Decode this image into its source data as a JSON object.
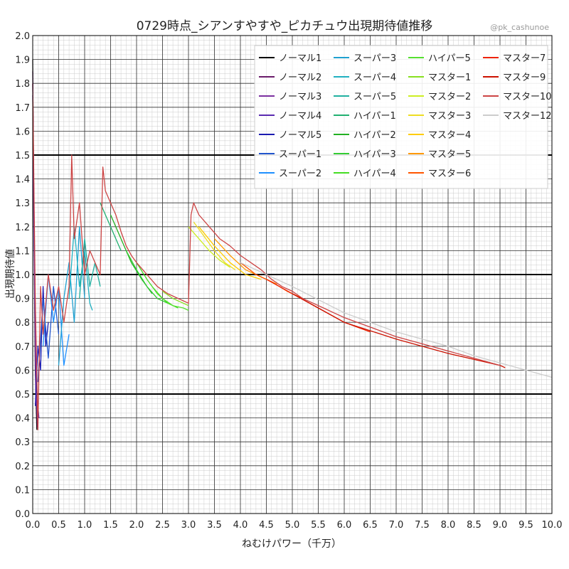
{
  "watermark": "@pk_cashunoe",
  "colors": {
    "grid_major": "#333333",
    "grid_minor": "#cccccc",
    "reference_lines": "#000000"
  },
  "chart_data": {
    "type": "line",
    "title": "0729時点_シアンすやすや_ピカチュウ出現期待値推移",
    "xlabel": "ねむけパワー（千万）",
    "ylabel": "出現期待値",
    "xlim": [
      0,
      10
    ],
    "ylim": [
      0,
      2
    ],
    "x_ticks": [
      "0.0",
      "0.5",
      "1.0",
      "1.5",
      "2.0",
      "2.5",
      "3.0",
      "3.5",
      "4.0",
      "4.5",
      "5.0",
      "5.5",
      "6.0",
      "6.5",
      "7.0",
      "7.5",
      "8.0",
      "8.5",
      "9.0",
      "9.5",
      "10.0"
    ],
    "y_ticks": [
      "0.0",
      "0.1",
      "0.2",
      "0.3",
      "0.4",
      "0.5",
      "0.6",
      "0.7",
      "0.8",
      "0.9",
      "1.0",
      "1.1",
      "1.2",
      "1.3",
      "1.4",
      "1.5",
      "1.6",
      "1.7",
      "1.8",
      "1.9",
      "2.0"
    ],
    "grid": true,
    "reference_lines_y": [
      0.5,
      1.0,
      1.5
    ],
    "legend_position": "top-right",
    "legend_columns": 4,
    "series": [
      {
        "name": "ノーマル1",
        "color": "#000000",
        "x": [
          0.0,
          0.02,
          0.05,
          0.08
        ],
        "y": [
          1.9,
          1.2,
          0.6,
          0.35
        ]
      },
      {
        "name": "ノーマル2",
        "color": "#6a1b6a",
        "x": [
          0.0,
          0.03,
          0.06,
          0.09
        ],
        "y": [
          1.85,
          1.1,
          0.55,
          0.36
        ]
      },
      {
        "name": "ノーマル3",
        "color": "#7b2fa0",
        "x": [
          0.0,
          0.03,
          0.06,
          0.1
        ],
        "y": [
          1.8,
          1.05,
          0.5,
          0.38
        ]
      },
      {
        "name": "ノーマル4",
        "color": "#5a2ab0",
        "x": [
          0.0,
          0.04,
          0.08,
          0.12
        ],
        "y": [
          1.75,
          1.0,
          0.5,
          0.4
        ]
      },
      {
        "name": "ノーマル5",
        "color": "#1a1ab0",
        "x": [
          0.05,
          0.1,
          0.15,
          0.2,
          0.25,
          0.3
        ],
        "y": [
          0.45,
          0.7,
          0.6,
          0.95,
          0.7,
          0.8
        ]
      },
      {
        "name": "スーパー1",
        "color": "#2255cc",
        "x": [
          0.1,
          0.2,
          0.3,
          0.4,
          0.5
        ],
        "y": [
          0.55,
          0.9,
          0.65,
          0.95,
          0.75
        ]
      },
      {
        "name": "スーパー2",
        "color": "#1e90ff",
        "x": [
          0.2,
          0.3,
          0.4,
          0.5,
          0.6,
          0.7
        ],
        "y": [
          0.7,
          1.0,
          0.8,
          0.95,
          0.62,
          0.75
        ]
      },
      {
        "name": "スーパー3",
        "color": "#1fa0d0",
        "x": [
          0.5,
          0.6,
          0.7,
          0.8,
          0.9,
          1.0
        ],
        "y": [
          0.62,
          0.9,
          1.05,
          0.8,
          1.2,
          0.9
        ]
      },
      {
        "name": "スーパー4",
        "color": "#20b0c0",
        "x": [
          0.7,
          0.8,
          0.9,
          1.0,
          1.1,
          1.15
        ],
        "y": [
          0.9,
          1.2,
          0.95,
          1.1,
          0.88,
          0.85
        ]
      },
      {
        "name": "スーパー5",
        "color": "#20b0a0",
        "x": [
          0.9,
          1.0,
          1.1,
          1.2,
          1.3
        ],
        "y": [
          0.9,
          1.15,
          0.95,
          1.05,
          0.95
        ]
      },
      {
        "name": "ハイパー1",
        "color": "#20b070",
        "x": [
          1.3,
          1.4,
          1.5,
          1.6,
          1.7
        ],
        "y": [
          1.3,
          1.25,
          1.2,
          1.15,
          1.1
        ]
      },
      {
        "name": "ハイパー2",
        "color": "#22b022",
        "x": [
          1.5,
          1.7,
          1.9,
          2.1,
          2.3
        ],
        "y": [
          1.25,
          1.15,
          1.05,
          0.98,
          0.92
        ]
      },
      {
        "name": "ハイパー3",
        "color": "#33cc33",
        "x": [
          1.8,
          2.0,
          2.2,
          2.4,
          2.6
        ],
        "y": [
          1.1,
          1.02,
          0.95,
          0.9,
          0.88
        ]
      },
      {
        "name": "ハイパー4",
        "color": "#44dd22",
        "x": [
          2.0,
          2.2,
          2.4,
          2.6,
          2.8
        ],
        "y": [
          1.05,
          0.98,
          0.92,
          0.88,
          0.86
        ]
      },
      {
        "name": "ハイパー5",
        "color": "#55e030",
        "x": [
          2.3,
          2.5,
          2.7,
          2.9,
          3.0
        ],
        "y": [
          0.95,
          0.9,
          0.87,
          0.86,
          0.85
        ]
      },
      {
        "name": "マスター1",
        "color": "#88e020",
        "x": [
          2.5,
          2.7,
          2.9,
          3.0
        ],
        "y": [
          0.93,
          0.9,
          0.88,
          0.87
        ]
      },
      {
        "name": "マスター2",
        "color": "#ccee22",
        "x": [
          3.0,
          3.2,
          3.4,
          3.6,
          3.8
        ],
        "y": [
          1.2,
          1.15,
          1.1,
          1.06,
          1.03
        ]
      },
      {
        "name": "マスター3",
        "color": "#eedd22",
        "x": [
          3.1,
          3.3,
          3.5,
          3.7,
          3.9
        ],
        "y": [
          1.22,
          1.16,
          1.1,
          1.05,
          1.02
        ]
      },
      {
        "name": "マスター4",
        "color": "#ffcc00",
        "x": [
          3.2,
          3.5,
          3.8,
          4.1,
          4.4
        ],
        "y": [
          1.2,
          1.12,
          1.05,
          1.0,
          0.98
        ]
      },
      {
        "name": "マスター5",
        "color": "#ff9900",
        "x": [
          3.5,
          3.8,
          4.1,
          4.4,
          4.7
        ],
        "y": [
          1.15,
          1.08,
          1.02,
          0.99,
          0.96
        ]
      },
      {
        "name": "マスター6",
        "color": "#ff5500",
        "x": [
          4.0,
          4.3,
          4.6,
          4.9,
          5.2
        ],
        "y": [
          1.05,
          1.0,
          0.97,
          0.93,
          0.9
        ]
      },
      {
        "name": "マスター7",
        "color": "#ee2200",
        "x": [
          4.5,
          5.0,
          5.5,
          6.0,
          6.5
        ],
        "y": [
          0.98,
          0.92,
          0.86,
          0.8,
          0.76
        ]
      },
      {
        "name": "マスター9",
        "color": "#cc1100",
        "x": [
          5.0,
          6.0,
          7.0,
          8.0,
          9.0,
          9.1
        ],
        "y": [
          0.92,
          0.8,
          0.73,
          0.67,
          0.62,
          0.61
        ]
      },
      {
        "name": "マスター10",
        "color": "#cc4444",
        "x": [
          0.0,
          0.05,
          0.1,
          0.15,
          0.2,
          0.3,
          0.4,
          0.5,
          0.6,
          0.7,
          0.75,
          0.8,
          0.9,
          1.0,
          1.1,
          1.2,
          1.3,
          1.35,
          1.4,
          1.5,
          1.6,
          1.7,
          1.8,
          1.9,
          2.0,
          2.2,
          2.4,
          2.6,
          2.8,
          3.0,
          3.05,
          3.1,
          3.2,
          3.4,
          3.6,
          3.8,
          4.0,
          4.2,
          4.4,
          4.6,
          4.8,
          5.0,
          5.2,
          5.4,
          5.6,
          5.8,
          6.0,
          6.5,
          7.0,
          7.5,
          8.0,
          8.5,
          9.0
        ],
        "y": [
          1.8,
          0.9,
          0.35,
          0.95,
          0.75,
          1.0,
          0.85,
          0.95,
          0.8,
          0.95,
          1.5,
          1.15,
          1.3,
          1.0,
          1.1,
          1.05,
          1.0,
          1.45,
          1.35,
          1.3,
          1.25,
          1.18,
          1.12,
          1.08,
          1.05,
          1.0,
          0.95,
          0.92,
          0.9,
          0.88,
          1.25,
          1.3,
          1.25,
          1.2,
          1.15,
          1.12,
          1.08,
          1.05,
          1.02,
          0.98,
          0.95,
          0.93,
          0.9,
          0.88,
          0.86,
          0.84,
          0.82,
          0.78,
          0.74,
          0.71,
          0.68,
          0.65,
          0.62
        ]
      },
      {
        "name": "マスター12",
        "color": "#cccccc",
        "x": [
          4.0,
          5.0,
          6.0,
          7.0,
          7.5,
          8.0,
          8.5,
          9.0,
          9.5,
          10.0
        ],
        "y": [
          1.05,
          0.95,
          0.84,
          0.76,
          0.73,
          0.7,
          0.66,
          0.63,
          0.6,
          0.57
        ]
      }
    ]
  }
}
